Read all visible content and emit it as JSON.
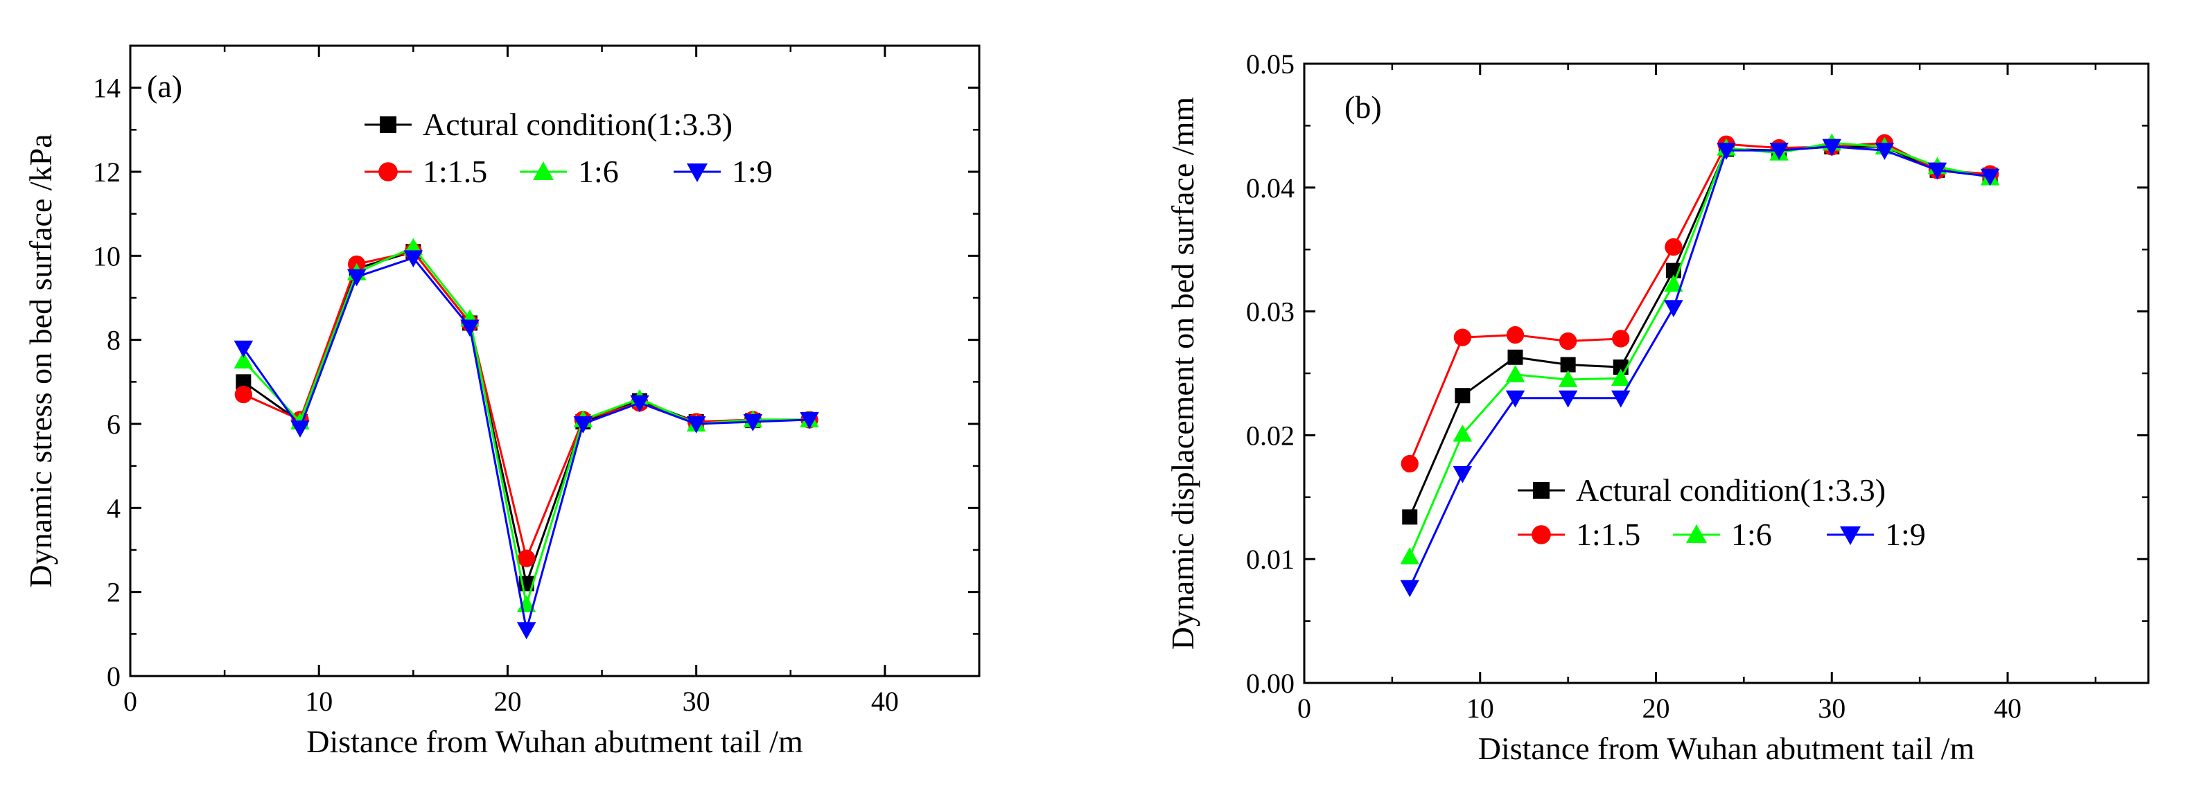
{
  "chart_data": [
    {
      "type": "line",
      "panel_label": "(a)",
      "xlabel": "Distance from Wuhan abutment tail /m",
      "ylabel": "Dynamic stress on bed surface /kPa",
      "xlim": [
        0,
        45
      ],
      "ylim": [
        0,
        15
      ],
      "xticks": [
        "0",
        "10",
        "20",
        "30",
        "40"
      ],
      "yticks": [
        "0",
        "2",
        "4",
        "6",
        "8",
        "10",
        "12",
        "14"
      ],
      "x": [
        6,
        9,
        12,
        15,
        18,
        21,
        24,
        27,
        30,
        33,
        36
      ],
      "series": [
        {
          "name": "Actural condition(1:3.3)",
          "color": "#000000",
          "marker": "square",
          "values": [
            7.0,
            6.05,
            9.7,
            10.1,
            8.4,
            2.2,
            6.05,
            6.55,
            6.05,
            6.08,
            6.1
          ]
        },
        {
          "name": "1:1.5",
          "color": "#ff0000",
          "marker": "circle",
          "values": [
            6.7,
            6.1,
            9.8,
            10.1,
            8.4,
            2.8,
            6.1,
            6.5,
            6.05,
            6.1,
            6.1
          ]
        },
        {
          "name": "1:6",
          "color": "#00ff00",
          "marker": "triangle-up",
          "values": [
            7.5,
            6.05,
            9.6,
            10.2,
            8.5,
            1.7,
            6.1,
            6.6,
            6.0,
            6.1,
            6.1
          ]
        },
        {
          "name": "1:9",
          "color": "#0000ff",
          "marker": "triangle-down",
          "values": [
            7.8,
            5.9,
            9.5,
            9.95,
            8.3,
            1.1,
            6.0,
            6.5,
            6.0,
            6.05,
            6.1
          ]
        }
      ]
    },
    {
      "type": "line",
      "panel_label": "(b)",
      "xlabel": "Distance from Wuhan abutment tail /m",
      "ylabel": "Dynamic displacement on bed surface /mm",
      "xlim": [
        0,
        48
      ],
      "ylim": [
        0,
        0.05
      ],
      "xticks": [
        "0",
        "10",
        "20",
        "30",
        "40"
      ],
      "yticks": [
        "0.00",
        "0.01",
        "0.02",
        "0.03",
        "0.04",
        "0.05"
      ],
      "x": [
        6,
        9,
        12,
        15,
        18,
        21,
        24,
        27,
        30,
        33,
        36,
        39
      ],
      "series": [
        {
          "name": "Actural condition(1:3.3)",
          "color": "#000000",
          "marker": "square",
          "values": [
            0.0134,
            0.0232,
            0.0263,
            0.0257,
            0.0255,
            0.0333,
            0.0431,
            0.043,
            0.0433,
            0.0433,
            0.0414,
            0.041
          ]
        },
        {
          "name": "1:1.5",
          "color": "#ff0000",
          "marker": "circle",
          "values": [
            0.0177,
            0.0279,
            0.0281,
            0.0276,
            0.0278,
            0.0352,
            0.0435,
            0.0432,
            0.0433,
            0.0436,
            0.0414,
            0.0411
          ]
        },
        {
          "name": "1:6",
          "color": "#00ff00",
          "marker": "triangle-up",
          "values": [
            0.0102,
            0.0201,
            0.0249,
            0.0245,
            0.0246,
            0.0322,
            0.0432,
            0.0428,
            0.0436,
            0.0433,
            0.0417,
            0.0408
          ]
        },
        {
          "name": "1:9",
          "color": "#0000ff",
          "marker": "triangle-down",
          "values": [
            0.0077,
            0.0169,
            0.023,
            0.023,
            0.023,
            0.0303,
            0.043,
            0.043,
            0.0433,
            0.043,
            0.0414,
            0.0409
          ]
        }
      ]
    }
  ]
}
